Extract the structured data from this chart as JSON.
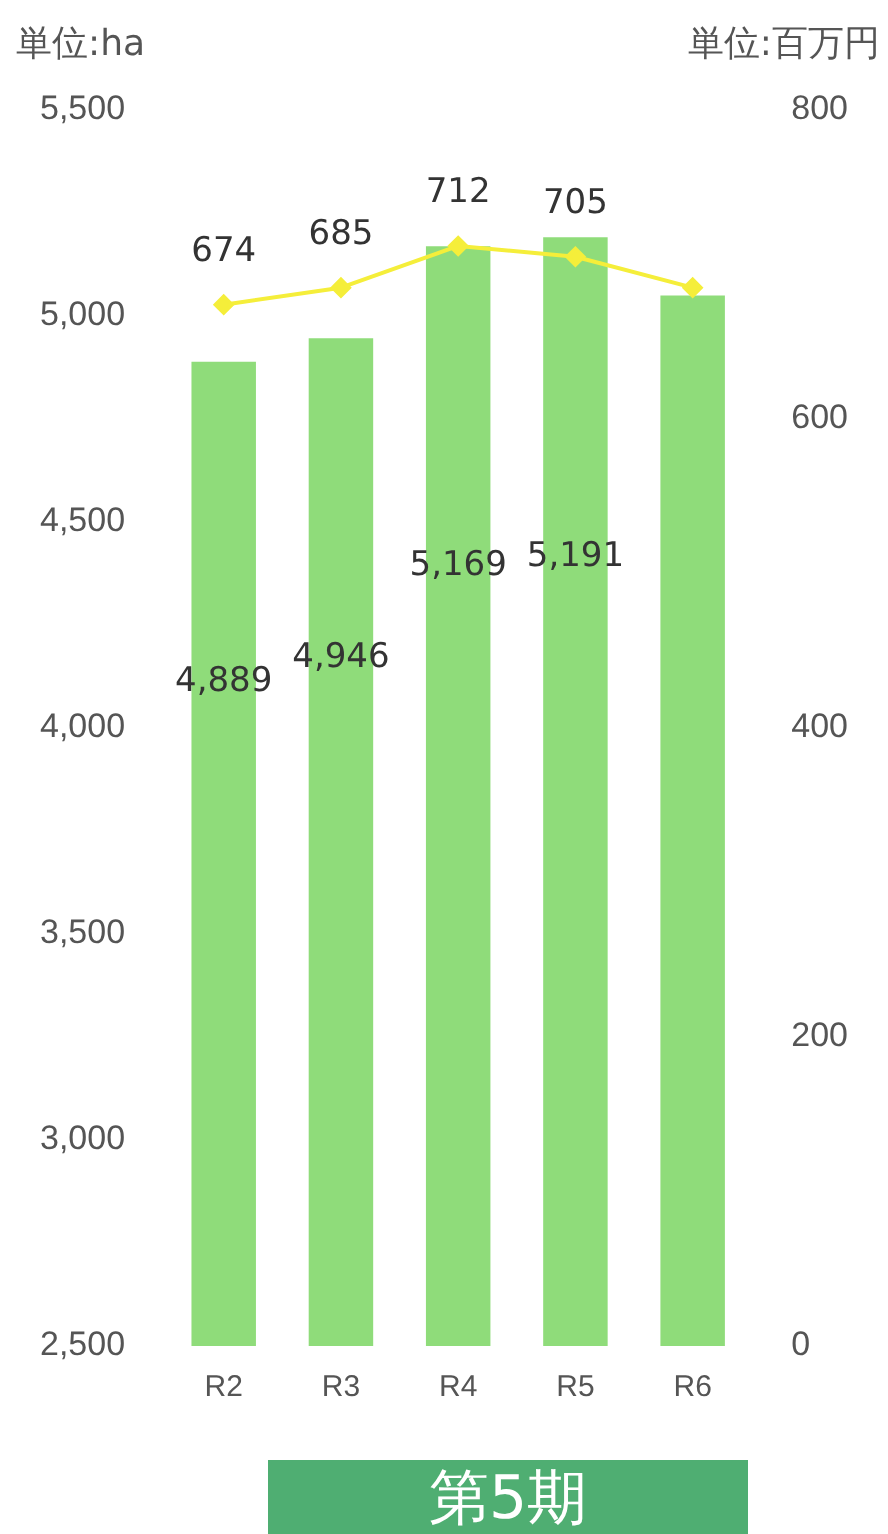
{
  "chart_data": {
    "type": "bar",
    "title": "第5期",
    "ylabel": "単位:ha",
    "y2label": "単位:百万円",
    "categories": [
      "R2",
      "R3",
      "R4",
      "R5",
      "R6"
    ],
    "series": [
      {
        "color": "#8fdc7a",
        "values": [
          4889,
          4946,
          5169,
          5191,
          5050
        ],
        "value_labels": [
          "4,889",
          "4,946",
          "5,169",
          "5,191",
          null
        ]
      },
      {
        "type": "line",
        "axis": "y2",
        "color": "#f5ee3a",
        "marker": "diamond",
        "values": [
          674,
          685,
          712,
          705,
          685
        ],
        "value_labels": [
          "674",
          "685",
          "712",
          "705",
          null
        ]
      }
    ],
    "ylim": [
      2500,
      5500
    ],
    "yticks": [
      {
        "value": 2500,
        "label": "2,500"
      },
      {
        "value": 3000,
        "label": "3,000"
      },
      {
        "value": 3500,
        "label": "3,500"
      },
      {
        "value": 4000,
        "label": "4,000"
      },
      {
        "value": 4500,
        "label": "4,500"
      },
      {
        "value": 5000,
        "label": "5,000"
      },
      {
        "value": 5500,
        "label": "5,500"
      }
    ],
    "y2lim": [
      0,
      800
    ],
    "y2ticks": [
      0,
      200,
      400,
      600,
      800
    ],
    "grid": false,
    "legend": false
  }
}
